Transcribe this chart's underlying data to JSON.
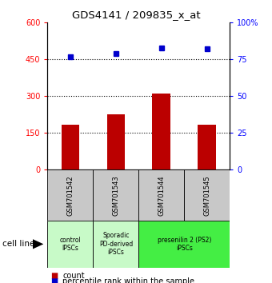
{
  "title": "GDS4141 / 209835_x_at",
  "samples": [
    "GSM701542",
    "GSM701543",
    "GSM701544",
    "GSM701545"
  ],
  "count_values": [
    185,
    225,
    310,
    185
  ],
  "percentile_values": [
    77,
    79,
    83,
    82
  ],
  "bar_color": "#bb0000",
  "dot_color": "#0000cc",
  "ylim_left": [
    0,
    600
  ],
  "ylim_right": [
    0,
    100
  ],
  "yticks_left": [
    0,
    150,
    300,
    450,
    600
  ],
  "yticks_right": [
    0,
    25,
    50,
    75,
    100
  ],
  "ytick_labels_left": [
    "0",
    "150",
    "300",
    "450",
    "600"
  ],
  "ytick_labels_right": [
    "0",
    "25",
    "50",
    "75",
    "100%"
  ],
  "hlines": [
    150,
    300,
    450
  ],
  "cell_line_label": "cell line",
  "legend_count_label": "count",
  "legend_pct_label": "percentile rank within the sample",
  "sample_bg_color": "#c8c8c8",
  "group1_color": "#c8fac8",
  "group2_color": "#c8fac8",
  "group3_color": "#44ee44",
  "group_info": [
    [
      0,
      1,
      "#c8fac8",
      "control\nIPSCs"
    ],
    [
      1,
      2,
      "#c8fac8",
      "Sporadic\nPD-derived\niPSCs"
    ],
    [
      2,
      4,
      "#44ee44",
      "presenilin 2 (PS2)\niPSCs"
    ]
  ]
}
